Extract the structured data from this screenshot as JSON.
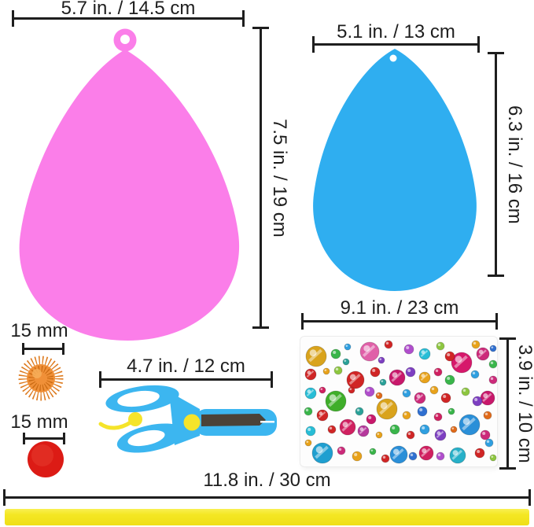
{
  "title": "Easter egg craft kit dimensions diagram",
  "colors": {
    "line": "#1e1e1e",
    "pink_egg": "#FB7EE9",
    "blue_egg": "#2FAEF0",
    "orange_pom_core": "#F09038",
    "orange_pom_spike": "#DD7A1E",
    "orange_pom_dark": "#C96A12",
    "red_pom": "#DC1B15",
    "scissors_blue": "#3CB6F0",
    "scissors_yellow": "#F5E42A",
    "blade_dark": "#4B4238",
    "ribbon_yellow": "#F4E723",
    "sheet_bg": "#FDFDFD"
  },
  "items": {
    "pink_egg": {
      "name": "pink egg cutout",
      "width_label": "5.7 in. / 14.5 cm",
      "height_label": "7.5 in. / 19 cm"
    },
    "blue_egg": {
      "name": "blue egg cutout",
      "width_label": "5.1 in. / 13 cm",
      "height_label": "6.3 in. / 16 cm"
    },
    "orange_pompom": {
      "name": "orange tinsel pom-pom",
      "size_label": "15 mm"
    },
    "red_pompom": {
      "name": "red pom-pom",
      "size_label": "15 mm"
    },
    "scissors": {
      "name": "kids safety scissors",
      "width_label": "4.7 in. / 12 cm"
    },
    "gem_sheet": {
      "name": "gem sticker sheet",
      "width_label": "9.1 in. / 23 cm",
      "height_label": "3.9 in. / 10 cm",
      "gems": [
        [
          20,
          25,
          13,
          "#D9A31C"
        ],
        [
          88,
          19,
          12,
          "#E060A8"
        ],
        [
          123,
          52,
          10,
          "#C8186B"
        ],
        [
          70,
          55,
          11,
          "#D02525"
        ],
        [
          45,
          82,
          13,
          "#3FAE2A"
        ],
        [
          110,
          92,
          13,
          "#D9A31C"
        ],
        [
          60,
          115,
          10,
          "#D02060"
        ],
        [
          28,
          148,
          13,
          "#1F9FD0"
        ],
        [
          125,
          150,
          11,
          "#2A8FD8"
        ],
        [
          205,
          33,
          13,
          "#D6186B"
        ],
        [
          232,
          22,
          8,
          "#CC2A7A"
        ],
        [
          215,
          112,
          13,
          "#2A8FD8"
        ],
        [
          200,
          151,
          10,
          "#27B0C8"
        ],
        [
          160,
          148,
          9,
          "#D02060"
        ],
        [
          238,
          78,
          9,
          "#C8186B"
        ],
        [
          45,
          22,
          6,
          "#39B54A"
        ],
        [
          60,
          13,
          4,
          "#2F9FE0"
        ],
        [
          112,
          10,
          5,
          "#D02525"
        ],
        [
          138,
          16,
          6,
          "#B04ECC"
        ],
        [
          158,
          22,
          7,
          "#27BDD6"
        ],
        [
          178,
          12,
          5,
          "#8DC63F"
        ],
        [
          190,
          25,
          6,
          "#D02525"
        ],
        [
          223,
          10,
          5,
          "#E8A21A"
        ],
        [
          245,
          15,
          4,
          "#2F6FD0"
        ],
        [
          13,
          48,
          7,
          "#D02525"
        ],
        [
          33,
          44,
          4,
          "#E8A21A"
        ],
        [
          48,
          43,
          5,
          "#8DC63F"
        ],
        [
          95,
          45,
          6,
          "#D02525"
        ],
        [
          105,
          58,
          4,
          "#2AA198"
        ],
        [
          140,
          45,
          6,
          "#7D3FC1"
        ],
        [
          158,
          52,
          7,
          "#E8A21A"
        ],
        [
          175,
          45,
          5,
          "#D02060"
        ],
        [
          190,
          55,
          6,
          "#39B54A"
        ],
        [
          222,
          48,
          5,
          "#2F9FE0"
        ],
        [
          245,
          55,
          5,
          "#CC2A7A"
        ],
        [
          13,
          72,
          7,
          "#27BDD6"
        ],
        [
          28,
          68,
          4,
          "#D02060"
        ],
        [
          65,
          68,
          4,
          "#D02525"
        ],
        [
          88,
          70,
          6,
          "#B04ECC"
        ],
        [
          100,
          75,
          4,
          "#E06A19"
        ],
        [
          135,
          72,
          5,
          "#2F9FE0"
        ],
        [
          152,
          78,
          7,
          "#CC2A7A"
        ],
        [
          170,
          68,
          5,
          "#E8A21A"
        ],
        [
          185,
          78,
          6,
          "#D02525"
        ],
        [
          210,
          70,
          5,
          "#8DC63F"
        ],
        [
          225,
          82,
          6,
          "#7D3FC1"
        ],
        [
          10,
          95,
          5,
          "#39B54A"
        ],
        [
          28,
          100,
          7,
          "#D02525"
        ],
        [
          75,
          95,
          5,
          "#2AA198"
        ],
        [
          90,
          105,
          6,
          "#C8186B"
        ],
        [
          135,
          100,
          5,
          "#E8A21A"
        ],
        [
          155,
          95,
          6,
          "#2F6FD0"
        ],
        [
          175,
          102,
          5,
          "#D02060"
        ],
        [
          192,
          95,
          4,
          "#39B54A"
        ],
        [
          238,
          100,
          5,
          "#E06A19"
        ],
        [
          13,
          120,
          6,
          "#27BDD6"
        ],
        [
          40,
          118,
          5,
          "#D02525"
        ],
        [
          80,
          120,
          7,
          "#B5389C"
        ],
        [
          100,
          125,
          4,
          "#E8A21A"
        ],
        [
          120,
          118,
          6,
          "#39B54A"
        ],
        [
          140,
          125,
          5,
          "#D02525"
        ],
        [
          158,
          118,
          6,
          "#2F9FE0"
        ],
        [
          178,
          125,
          7,
          "#7D3FC1"
        ],
        [
          195,
          118,
          4,
          "#E06A19"
        ],
        [
          235,
          125,
          6,
          "#CC2A7A"
        ],
        [
          52,
          145,
          5,
          "#CC2A7A"
        ],
        [
          72,
          152,
          6,
          "#E8A21A"
        ],
        [
          92,
          146,
          4,
          "#39B54A"
        ],
        [
          108,
          155,
          5,
          "#D02525"
        ],
        [
          143,
          152,
          5,
          "#2F6FD0"
        ],
        [
          178,
          152,
          5,
          "#B04ECC"
        ],
        [
          228,
          148,
          6,
          "#D02525"
        ],
        [
          245,
          154,
          4,
          "#8DC63F"
        ],
        [
          58,
          32,
          4,
          "#2AA198"
        ],
        [
          103,
          30,
          4,
          "#7D3FC1"
        ],
        [
          245,
          35,
          5,
          "#39B54A"
        ],
        [
          10,
          135,
          4,
          "#E8A21A"
        ],
        [
          240,
          135,
          5,
          "#2F9FE0"
        ]
      ]
    },
    "ribbon": {
      "name": "yellow ribbon",
      "width_label": "11.8 in. / 30 cm"
    }
  }
}
